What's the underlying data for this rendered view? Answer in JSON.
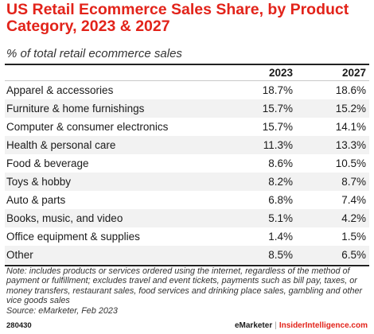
{
  "chart_data": {
    "type": "table",
    "title": "US Retail Ecommerce Sales Share, by Product Category, 2023 & 2027",
    "subtitle": "% of total retail ecommerce sales",
    "columns": [
      "2023",
      "2027"
    ],
    "rows": [
      {
        "category": "Apparel & accessories",
        "values": [
          "18.7%",
          "18.6%"
        ]
      },
      {
        "category": "Furniture & home furnishings",
        "values": [
          "15.7%",
          "15.2%"
        ]
      },
      {
        "category": "Computer & consumer electronics",
        "values": [
          "15.7%",
          "14.1%"
        ]
      },
      {
        "category": "Health & personal care",
        "values": [
          "11.3%",
          "13.3%"
        ]
      },
      {
        "category": "Food & beverage",
        "values": [
          "8.6%",
          "10.5%"
        ]
      },
      {
        "category": "Toys & hobby",
        "values": [
          "8.2%",
          "8.7%"
        ]
      },
      {
        "category": "Auto & parts",
        "values": [
          "6.8%",
          "7.4%"
        ]
      },
      {
        "category": "Books, music, and video",
        "values": [
          "5.1%",
          "4.2%"
        ]
      },
      {
        "category": "Office equipment & supplies",
        "values": [
          "1.4%",
          "1.5%"
        ]
      },
      {
        "category": "Other",
        "values": [
          "8.5%",
          "6.5%"
        ]
      }
    ],
    "note": "Note: includes products or services ordered using the internet, regardless of the method of payment or fulfillment; excludes travel and event tickets, payments such as bill pay, taxes, or money transfers, restaurant sales, food services and drinking place sales, gambling and other vice goods sales",
    "source": "Source: eMarketer, Feb 2023",
    "chart_id": "280430",
    "brand": "eMarketer",
    "brand_secondary": "InsiderIntelligence.com",
    "colors": {
      "title": "#e2231a",
      "row_shade": "#f2f2f2"
    }
  }
}
